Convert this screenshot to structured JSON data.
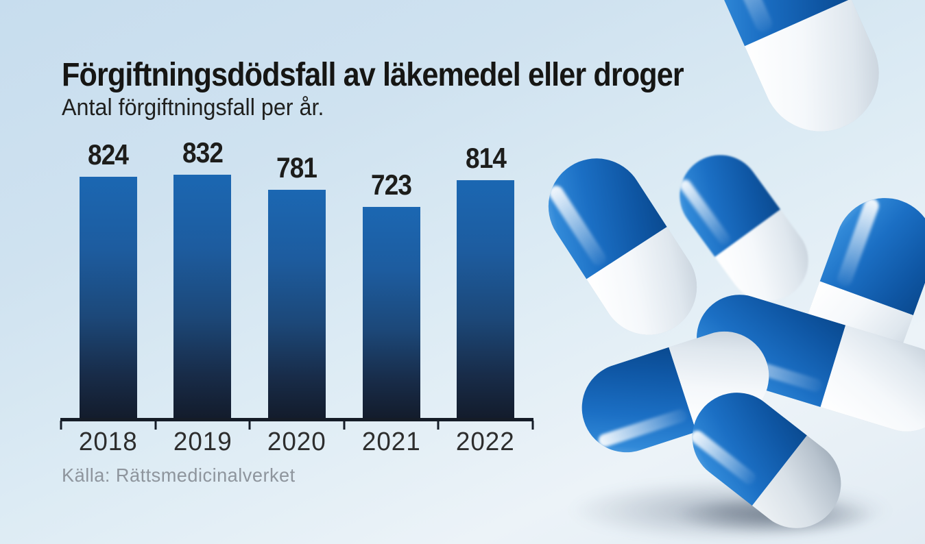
{
  "header": {
    "title": "Förgiftningsdödsfall av läkemedel eller droger",
    "subtitle": "Antal förgiftningsfall per år."
  },
  "chart_data": {
    "type": "bar",
    "categories": [
      "2018",
      "2019",
      "2020",
      "2021",
      "2022"
    ],
    "values": [
      824,
      832,
      781,
      723,
      814
    ],
    "title": "Förgiftningsdödsfall av läkemedel eller droger",
    "subtitle": "Antal förgiftningsfall per år.",
    "source": "Källa: Rättsmedicinalverket",
    "xlabel": "",
    "ylabel": "",
    "ylim": [
      0,
      832
    ],
    "grid": false,
    "legend": false,
    "show_value_labels": true,
    "colors": {
      "bar_gradient_top": "#1b67b2",
      "bar_gradient_bottom": "#131c2c",
      "axis": "#151c27",
      "value_label": "#1d1d1b",
      "tick_label": "#2d2d2d",
      "source_text": "#8e959d",
      "background": "#cfe2f0"
    }
  },
  "footer": {
    "source": "Källa: Rättsmedicinalverket"
  },
  "illustration": {
    "name": "falling-capsule-pills",
    "pill_count": 7,
    "pill_blue": "#1b6fc4",
    "pill_white": "#eef3f7"
  }
}
